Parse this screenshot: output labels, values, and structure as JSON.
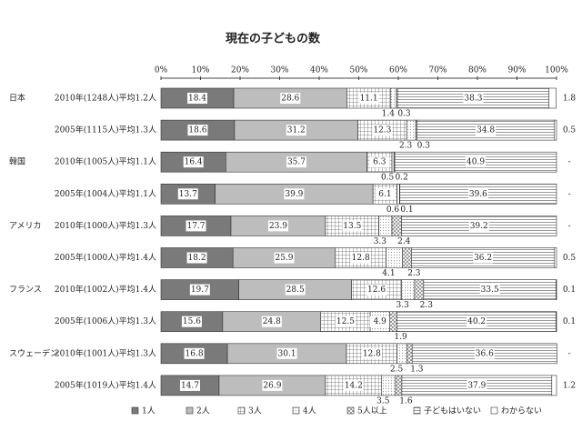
{
  "chart_data": {
    "type": "stacked-bar-horizontal",
    "title": "現在の子どもの数",
    "countries": [
      "日本",
      null,
      "韓国",
      null,
      "アメリカ",
      null,
      "フランス",
      null,
      "スウェーデン",
      null
    ],
    "categories": [
      "2010年(1248人)平均1.2人",
      "2005年(1115人)平均1.3人",
      "2010年(1005人)平均1.1人",
      "2005年(1004人)平均1.1人",
      "2010年(1000人)平均1.3人",
      "2005年(1000人)平均1.4人",
      "2010年(1002人)平均1.4人",
      "2005年(1006人)平均1.3人",
      "2010年(1001人)平均1.3人",
      "2005年(1019人)平均1.4人"
    ],
    "xlim": [
      0,
      100
    ],
    "xticks": [
      {
        "value": 0,
        "label": "0%"
      },
      {
        "value": 10,
        "label": "10%"
      },
      {
        "value": 20,
        "label": "20%"
      },
      {
        "value": 30,
        "label": "30%"
      },
      {
        "value": 40,
        "label": "40%"
      },
      {
        "value": 50,
        "label": "50%"
      },
      {
        "value": 60,
        "label": "60%"
      },
      {
        "value": 70,
        "label": "70%"
      },
      {
        "value": 80,
        "label": "80%"
      },
      {
        "value": 90,
        "label": "90%"
      },
      {
        "value": 100,
        "label": "100%"
      }
    ],
    "series": [
      {
        "name": "1人",
        "color": "#7a7a7a",
        "pattern": "solid",
        "values": [
          18.4,
          18.6,
          16.4,
          13.7,
          17.7,
          18.2,
          19.7,
          15.6,
          16.8,
          14.7
        ]
      },
      {
        "name": "2人",
        "color": "#bdbdbd",
        "pattern": "solid",
        "values": [
          28.6,
          31.2,
          35.7,
          39.9,
          23.9,
          25.9,
          28.5,
          24.8,
          30.1,
          26.9
        ]
      },
      {
        "name": "3人",
        "color": "#666666",
        "pattern": "grid",
        "values": [
          11.1,
          12.3,
          6.3,
          6.1,
          13.5,
          12.8,
          12.6,
          12.5,
          12.8,
          14.2
        ]
      },
      {
        "name": "4人",
        "color": "#999999",
        "pattern": "dots",
        "values": [
          1.4,
          2.3,
          0.5,
          0.6,
          3.3,
          4.1,
          3.3,
          4.9,
          2.5,
          3.5
        ]
      },
      {
        "name": "5人以上",
        "color": "#666666",
        "pattern": "diag",
        "values": [
          0.3,
          0.3,
          0.2,
          0.1,
          2.4,
          2.3,
          2.3,
          1.9,
          1.3,
          1.6
        ]
      },
      {
        "name": "子どもはいない",
        "color": "#555555",
        "pattern": "hlines",
        "values": [
          38.3,
          34.8,
          40.9,
          39.6,
          39.2,
          36.2,
          33.5,
          40.2,
          36.6,
          37.9
        ]
      },
      {
        "name": "わからない",
        "color": "#ffffff",
        "pattern": "solid",
        "values": [
          1.8,
          0.5,
          null,
          null,
          null,
          0.5,
          0.1,
          0.1,
          null,
          1.2
        ],
        "value_labels": [
          "1.8",
          "0.5",
          "-",
          "-",
          "-",
          "0.5",
          "0.1",
          "0.1",
          "-",
          "1.2"
        ]
      }
    ]
  }
}
